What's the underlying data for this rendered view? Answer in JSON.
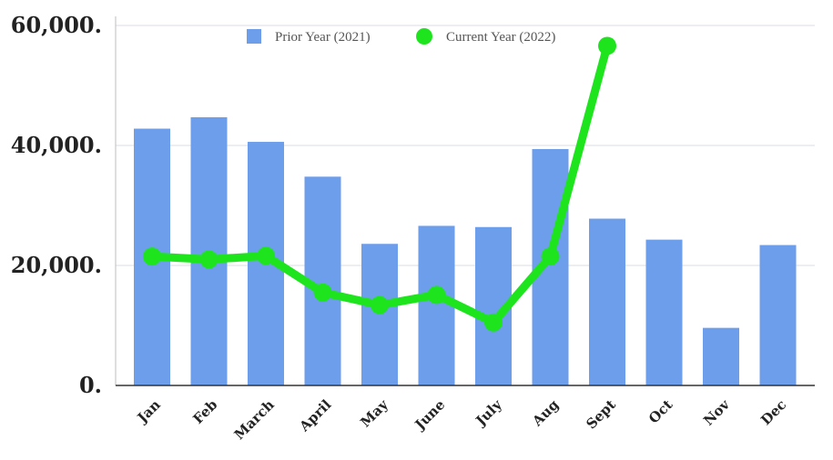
{
  "chart_data": {
    "type": "bar",
    "categories": [
      "Jan",
      "Feb",
      "March",
      "April",
      "May",
      "June",
      "July",
      "Aug",
      "Sept",
      "Oct",
      "Nov",
      "Dec"
    ],
    "series": [
      {
        "name": "Prior Year (2021)",
        "type": "bar",
        "color": "#6d9eeb",
        "values": [
          42800,
          44700,
          40600,
          34800,
          23600,
          26600,
          26400,
          39400,
          27800,
          24300,
          9600,
          23400
        ]
      },
      {
        "name": "Current Year (2022)",
        "type": "line",
        "color": "#1ee41e",
        "values": [
          21500,
          21000,
          21600,
          15500,
          13400,
          15100,
          10500,
          21500,
          56600,
          null,
          null,
          null
        ]
      }
    ],
    "y_ticks": [
      "0.",
      "20,000.",
      "40,000.",
      "60,000."
    ],
    "ylim": [
      0,
      60000
    ],
    "grid": true,
    "legend": "top"
  }
}
